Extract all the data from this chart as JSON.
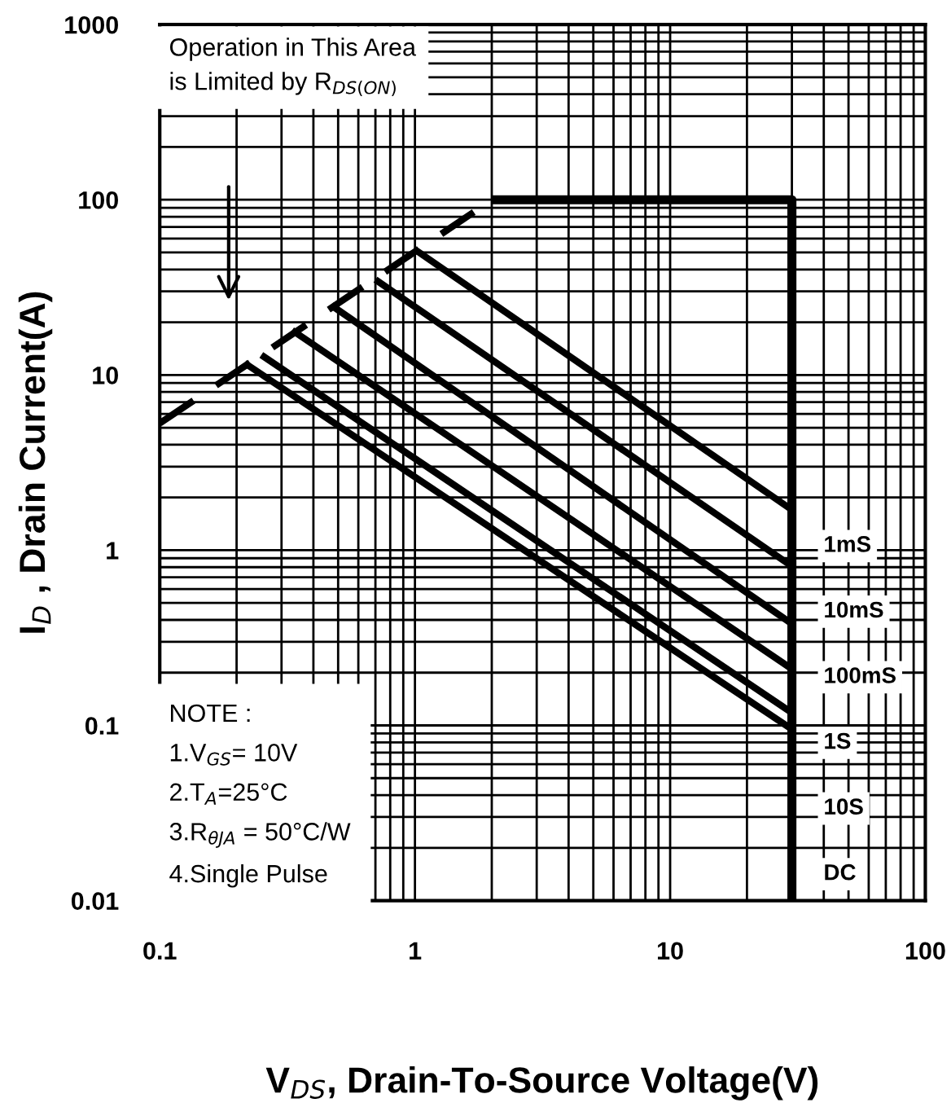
{
  "chart_data": {
    "type": "line",
    "xlabel": "V$_{DS}$, Drain-To-Source Voltage(V)",
    "ylabel": "I$_{D}$ , Drain Current(A)",
    "log": "xy",
    "xlim": [
      0.1,
      100
    ],
    "xticks": [
      0.1,
      1,
      10,
      100
    ],
    "ylim": [
      0.01,
      1000
    ],
    "yticks": [
      0.01,
      0.1,
      1,
      10,
      100,
      1000
    ],
    "grid": true,
    "legend": false,
    "marker": "none",
    "series": [
      {
        "x": [
          0.1,
          1.7
        ],
        "values": [
          5.3,
          85
        ],
        "color": "#000000",
        "line_style": "dashed"
      },
      {
        "x": [
          2,
          30,
          30
        ],
        "values": [
          100,
          100,
          0.01
        ],
        "color": "#000000",
        "line_style": "solid"
      },
      {
        "name": "1mS",
        "x": [
          1,
          30
        ],
        "values": [
          52,
          1.7
        ],
        "color": "#000000",
        "line_style": "solid"
      },
      {
        "name": "10mS",
        "x": [
          0.7,
          30
        ],
        "values": [
          35,
          0.81
        ],
        "color": "#000000",
        "line_style": "solid"
      },
      {
        "name": "100mS",
        "x": [
          0.47,
          30
        ],
        "values": [
          25,
          0.38
        ],
        "color": "#000000",
        "line_style": "solid"
      },
      {
        "name": "1S",
        "x": [
          0.33,
          30
        ],
        "values": [
          18,
          0.21
        ],
        "color": "#000000",
        "line_style": "solid"
      },
      {
        "name": "10S",
        "x": [
          0.25,
          30
        ],
        "values": [
          13,
          0.118
        ],
        "color": "#000000",
        "line_style": "solid"
      },
      {
        "name": "DC",
        "x": [
          0.215,
          30
        ],
        "values": [
          11.7,
          0.095
        ],
        "color": "#000000",
        "line_style": "solid"
      }
    ],
    "annotations": [
      "Operation in This Area\nis Limited by R$_{DS(ON)}$",
      "NOTE :\n1.V$_{GS}$= 10V\n2.T$_{A}$=25°C\n3.R$_{θJA}$ = 50°C/W\n4.Single Pulse"
    ]
  }
}
